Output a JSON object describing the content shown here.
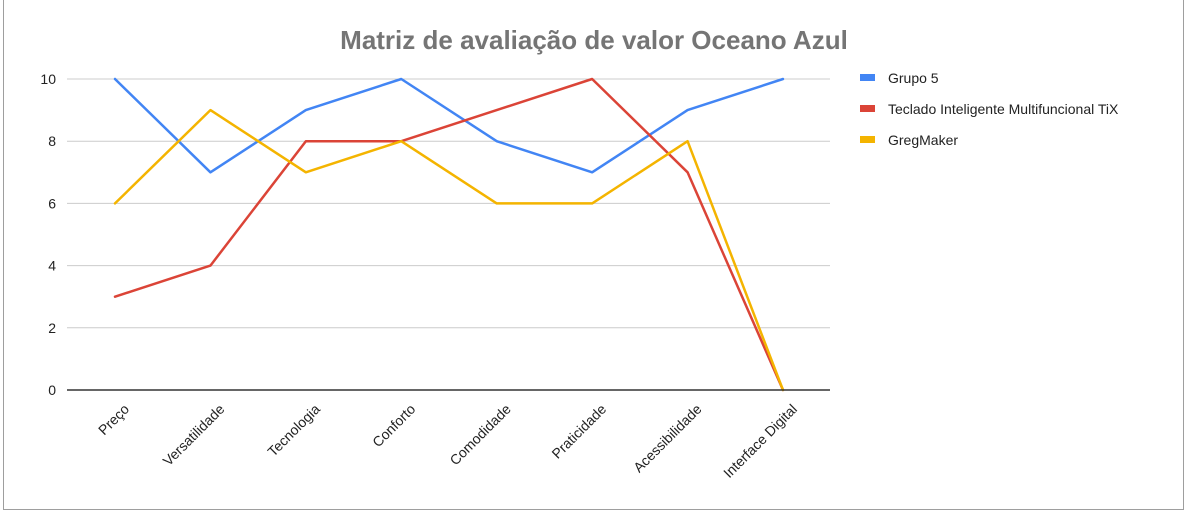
{
  "chart_data": {
    "type": "line",
    "title": "Matriz de avaliação de valor Oceano Azul",
    "xlabel": "",
    "ylabel": "",
    "categories": [
      "Preço",
      "Versatilidade",
      "Tecnologia",
      "Conforto",
      "Comodidade",
      "Praticidade",
      "Acessibilidade",
      "Interface Digital"
    ],
    "ylim": [
      0,
      10
    ],
    "yticks": [
      "0",
      "2",
      "4",
      "6",
      "8",
      "10"
    ],
    "grid": true,
    "legend_position": "right",
    "series": [
      {
        "name": "Grupo 5",
        "color": "#4285f4",
        "values": [
          10,
          7,
          9,
          10,
          8,
          7,
          9,
          10
        ]
      },
      {
        "name": "Teclado Inteligente Multifuncional TiX",
        "color": "#db4437",
        "values": [
          3,
          4,
          8,
          8,
          9,
          10,
          7,
          0
        ]
      },
      {
        "name": "GregMaker",
        "color": "#f4b400",
        "values": [
          6,
          9,
          7,
          8,
          6,
          6,
          8,
          0
        ]
      }
    ]
  }
}
